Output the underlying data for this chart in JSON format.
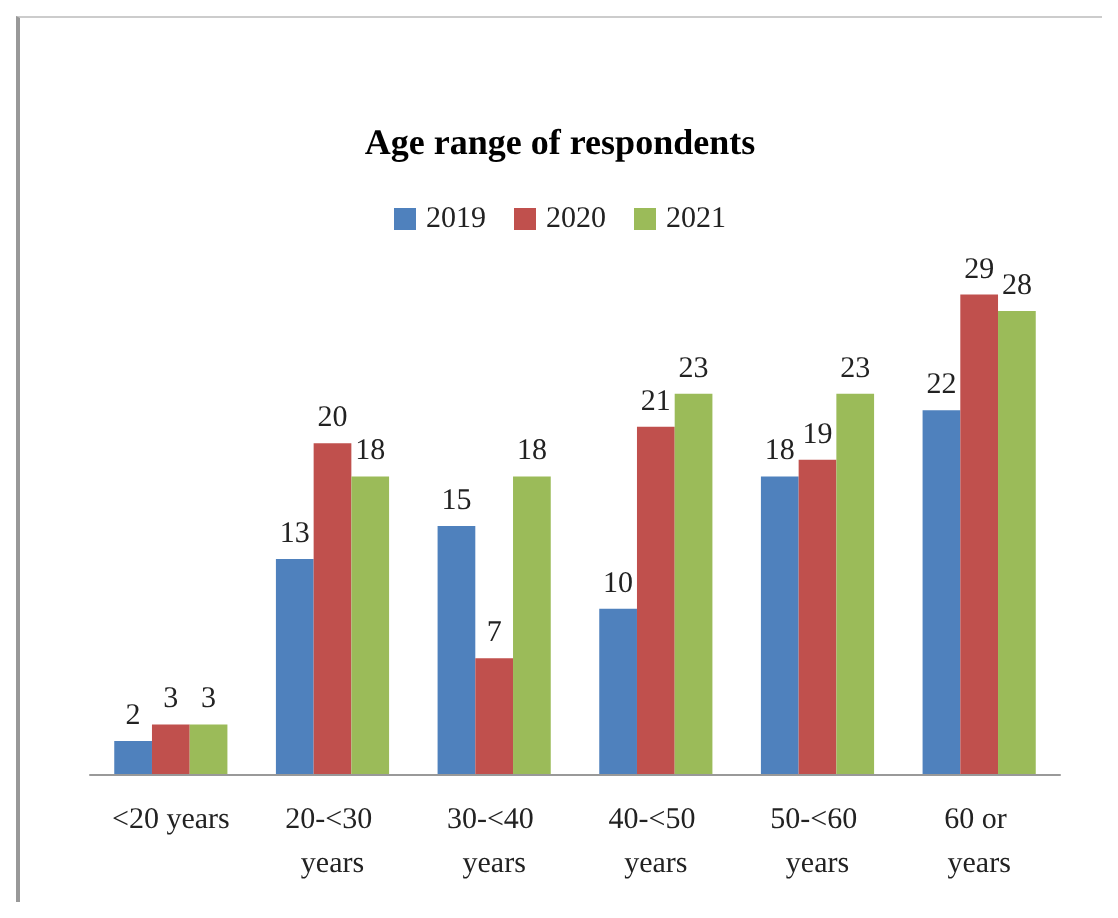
{
  "chart_data": {
    "type": "bar",
    "title": "Age range of respondents",
    "categories": [
      "<20 years",
      "20-<30 years",
      "30-<40 years",
      "40-<50 years",
      "50-<60 years",
      "60 or years"
    ],
    "series": [
      {
        "name": "2019",
        "color": "#4f81bd",
        "values": [
          2,
          13,
          15,
          10,
          18,
          22
        ]
      },
      {
        "name": "2020",
        "color": "#c0504d",
        "values": [
          3,
          20,
          7,
          21,
          19,
          29
        ]
      },
      {
        "name": "2021",
        "color": "#9bbb59",
        "values": [
          3,
          18,
          18,
          23,
          23,
          28
        ]
      }
    ],
    "data_labels": true,
    "legend": "top",
    "grid": false
  }
}
